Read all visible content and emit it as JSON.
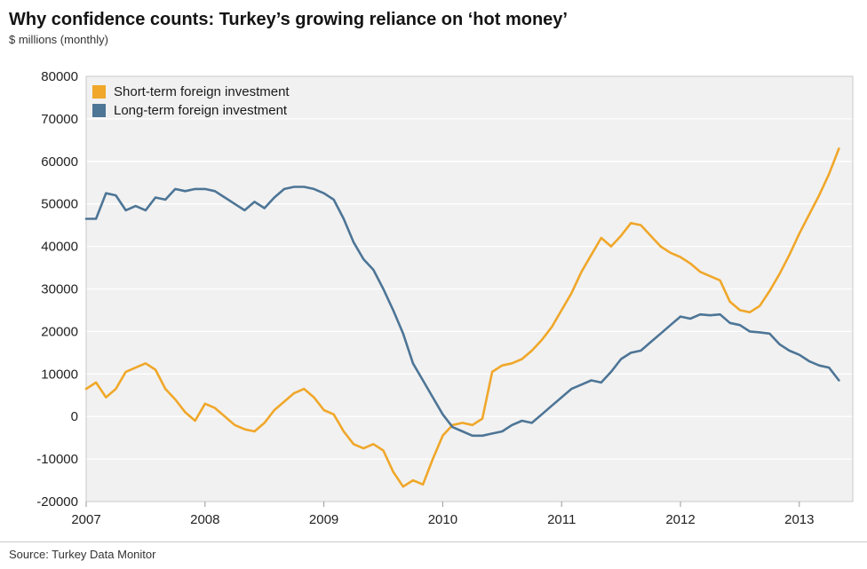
{
  "header": {
    "title": "Why confidence counts: Turkey’s growing reliance on ‘hot money’",
    "subtitle": "$ millions (monthly)"
  },
  "legend": {
    "items": [
      {
        "label": "Short-term foreign investment",
        "color": "#F0A72A"
      },
      {
        "label": "Long-term foreign investment",
        "color": "#4D7596"
      }
    ]
  },
  "source": {
    "label": "Source: Turkey Data Monitor"
  },
  "chart_data": {
    "type": "line",
    "title": "Why confidence counts: Turkey’s growing reliance on ‘hot money’",
    "ylabel": "$ millions (monthly)",
    "ylim": [
      -20000,
      80000
    ],
    "yticks": [
      -20000,
      -10000,
      0,
      10000,
      20000,
      30000,
      40000,
      50000,
      60000,
      70000,
      80000
    ],
    "xticks": [
      2007,
      2008,
      2009,
      2010,
      2011,
      2012,
      2013
    ],
    "x_range": [
      2007,
      2013.45
    ],
    "x_start": 2007,
    "x_step": "monthly",
    "grid": "horizontal",
    "legend_position": "top-left-inside",
    "plot_bg": "#F1F1F1",
    "grid_color": "#FFFFFF",
    "series": [
      {
        "name": "Short-term foreign investment",
        "color": "#F0A72A",
        "values": [
          6500,
          8000,
          4500,
          6500,
          10500,
          11500,
          12500,
          11000,
          6500,
          4000,
          1000,
          -1000,
          3000,
          2000,
          0,
          -2000,
          -3000,
          -3500,
          -1500,
          1500,
          3500,
          5500,
          6500,
          4500,
          1500,
          500,
          -3500,
          -6500,
          -7500,
          -6500,
          -8000,
          -13000,
          -16500,
          -15000,
          -16000,
          -10000,
          -4500,
          -2000,
          -1500,
          -2000,
          -500,
          10500,
          12000,
          12500,
          13500,
          15500,
          18000,
          21000,
          25000,
          29000,
          34000,
          38000,
          42000,
          40000,
          42500,
          45500,
          45000,
          42500,
          40000,
          38500,
          37500,
          36000,
          34000,
          33000,
          32000,
          27000,
          25000,
          24500,
          26000,
          29500,
          33500,
          38000,
          43000,
          47500,
          52000,
          57000,
          63000
        ]
      },
      {
        "name": "Long-term foreign investment",
        "color": "#4D7596",
        "values": [
          46500,
          46500,
          52500,
          52000,
          48500,
          49500,
          48500,
          51500,
          51000,
          53500,
          53000,
          53500,
          53500,
          53000,
          51500,
          50000,
          48500,
          50500,
          49000,
          51500,
          53500,
          54000,
          54000,
          53500,
          52500,
          51000,
          46500,
          41000,
          37000,
          34500,
          30000,
          25000,
          19500,
          12500,
          8500,
          4500,
          500,
          -2500,
          -3500,
          -4500,
          -4500,
          -4000,
          -3500,
          -2000,
          -1000,
          -1500,
          500,
          2500,
          4500,
          6500,
          7500,
          8500,
          8000,
          10500,
          13500,
          15000,
          15500,
          17500,
          19500,
          21500,
          23500,
          23000,
          24000,
          23800,
          24000,
          22000,
          21500,
          20000,
          19800,
          19500,
          17000,
          15500,
          14500,
          13000,
          12000,
          11500,
          8500
        ]
      }
    ]
  }
}
